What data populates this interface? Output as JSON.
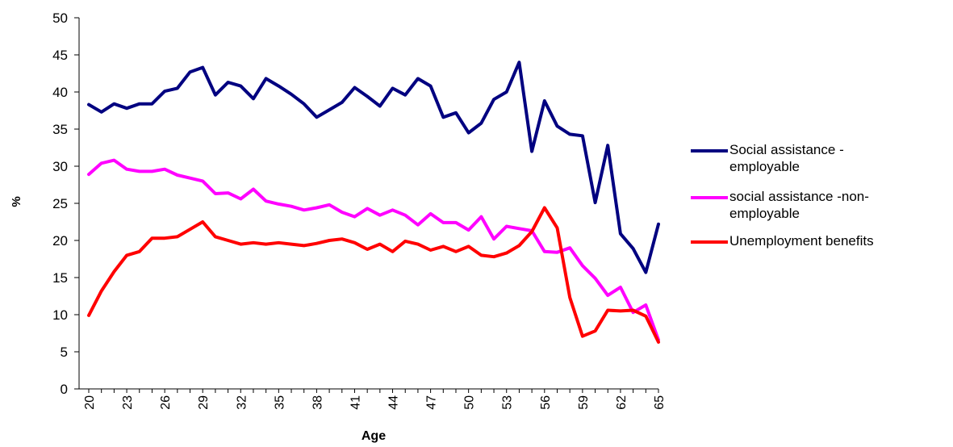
{
  "chart_data": {
    "type": "line",
    "title": "",
    "xlabel": "Age",
    "ylabel": "%",
    "ylim": [
      0,
      50
    ],
    "yticks": [
      0,
      5,
      10,
      15,
      20,
      25,
      30,
      35,
      40,
      45,
      50
    ],
    "x": [
      20,
      21,
      22,
      23,
      24,
      25,
      26,
      27,
      28,
      29,
      30,
      31,
      32,
      33,
      34,
      35,
      36,
      37,
      38,
      39,
      40,
      41,
      42,
      43,
      44,
      45,
      46,
      47,
      48,
      49,
      50,
      51,
      52,
      53,
      54,
      55,
      56,
      57,
      58,
      59,
      60,
      61,
      62,
      63,
      64,
      65
    ],
    "xtick_labels": [
      "20",
      "23",
      "26",
      "29",
      "32",
      "35",
      "38",
      "41",
      "44",
      "47",
      "50",
      "53",
      "56",
      "59",
      "62",
      "65"
    ],
    "xtick_values": [
      20,
      23,
      26,
      29,
      32,
      35,
      38,
      41,
      44,
      47,
      50,
      53,
      56,
      59,
      62,
      65
    ],
    "grid": false,
    "legend_position": "right",
    "series": [
      {
        "name": "Social assistance - employable",
        "color": "#000080",
        "values": [
          38.3,
          37.3,
          38.4,
          37.8,
          38.4,
          38.4,
          40.1,
          40.5,
          42.7,
          43.3,
          39.6,
          41.3,
          40.8,
          39.1,
          41.8,
          40.8,
          39.7,
          38.4,
          36.6,
          37.6,
          38.6,
          40.6,
          39.4,
          38.1,
          40.5,
          39.6,
          41.8,
          40.8,
          36.6,
          37.2,
          34.5,
          35.8,
          39.0,
          40.0,
          44.0,
          32.0,
          38.8,
          35.4,
          34.3,
          34.1,
          25.1,
          32.8,
          20.9,
          18.9,
          15.7,
          22.2
        ]
      },
      {
        "name": "social assistance -non-employable",
        "color": "#ff00ff",
        "values": [
          28.9,
          30.4,
          30.8,
          29.6,
          29.3,
          29.3,
          29.6,
          28.8,
          28.4,
          28.0,
          26.3,
          26.4,
          25.6,
          26.9,
          25.3,
          24.9,
          24.6,
          24.1,
          24.4,
          24.8,
          23.8,
          23.2,
          24.3,
          23.4,
          24.1,
          23.4,
          22.1,
          23.6,
          22.4,
          22.4,
          21.4,
          23.2,
          20.2,
          21.9,
          21.6,
          21.3,
          18.5,
          18.4,
          19.0,
          16.6,
          14.9,
          12.6,
          13.7,
          10.3,
          11.3,
          6.6
        ]
      },
      {
        "name": "Unemployment benefits",
        "color": "#ff0000",
        "values": [
          9.9,
          13.2,
          15.8,
          18.0,
          18.5,
          20.3,
          20.3,
          20.5,
          21.5,
          22.5,
          20.5,
          20.0,
          19.5,
          19.7,
          19.5,
          19.7,
          19.5,
          19.3,
          19.6,
          20.0,
          20.2,
          19.7,
          18.8,
          19.5,
          18.5,
          19.9,
          19.5,
          18.7,
          19.2,
          18.5,
          19.2,
          18.0,
          17.8,
          18.3,
          19.3,
          21.2,
          24.4,
          21.7,
          12.3,
          7.1,
          7.8,
          10.6,
          10.5,
          10.6,
          9.8,
          6.3
        ]
      }
    ]
  },
  "legend": {
    "items": [
      {
        "label": "Social assistance - employable",
        "color": "#000080"
      },
      {
        "label": "social assistance -non-employable",
        "color": "#ff00ff"
      },
      {
        "label": "Unemployment benefits",
        "color": "#ff0000"
      }
    ]
  }
}
